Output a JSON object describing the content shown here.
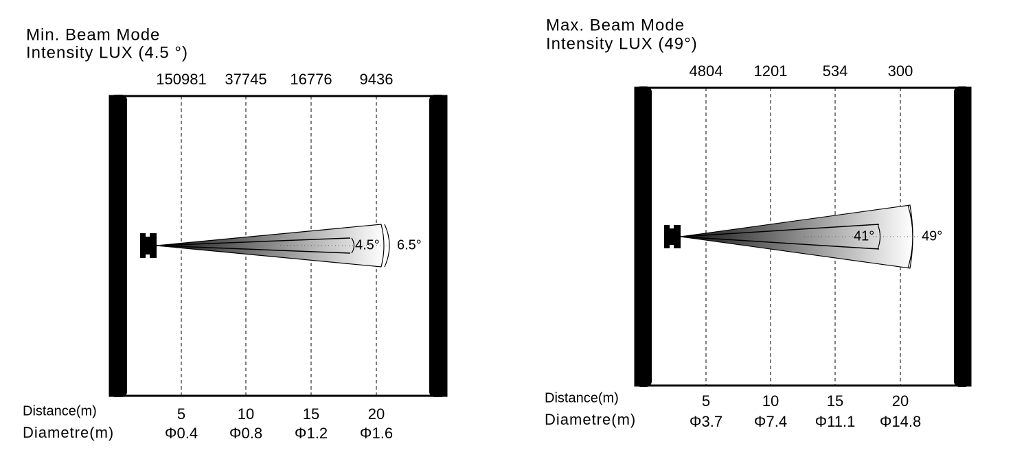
{
  "panels": [
    {
      "title": "Min. Beam Mode",
      "subtitle": "Intensity LUX (4.5 °)",
      "lux": [
        "150981",
        "37745",
        "16776",
        "9436"
      ],
      "distance_label": "Distance(m)",
      "distances": [
        "5",
        "10",
        "15",
        "20"
      ],
      "diameter_label": "Diametre(m)",
      "diameters": [
        "Φ0.4",
        "Φ0.8",
        "Φ1.2",
        "Φ1.6"
      ],
      "inner_angle": "4.5°",
      "outer_angle": "6.5°"
    },
    {
      "title": "Max. Beam Mode",
      "subtitle": "Intensity LUX (49°)",
      "lux": [
        "4804",
        "1201",
        "534",
        "300"
      ],
      "distance_label": "Distance(m)",
      "distances": [
        "5",
        "10",
        "15",
        "20"
      ],
      "diameter_label": "Diametre(m)",
      "diameters": [
        "Φ3.7",
        "Φ7.4",
        "Φ11.1",
        "Φ14.8"
      ],
      "inner_angle": "41°",
      "outer_angle": "49°"
    }
  ]
}
